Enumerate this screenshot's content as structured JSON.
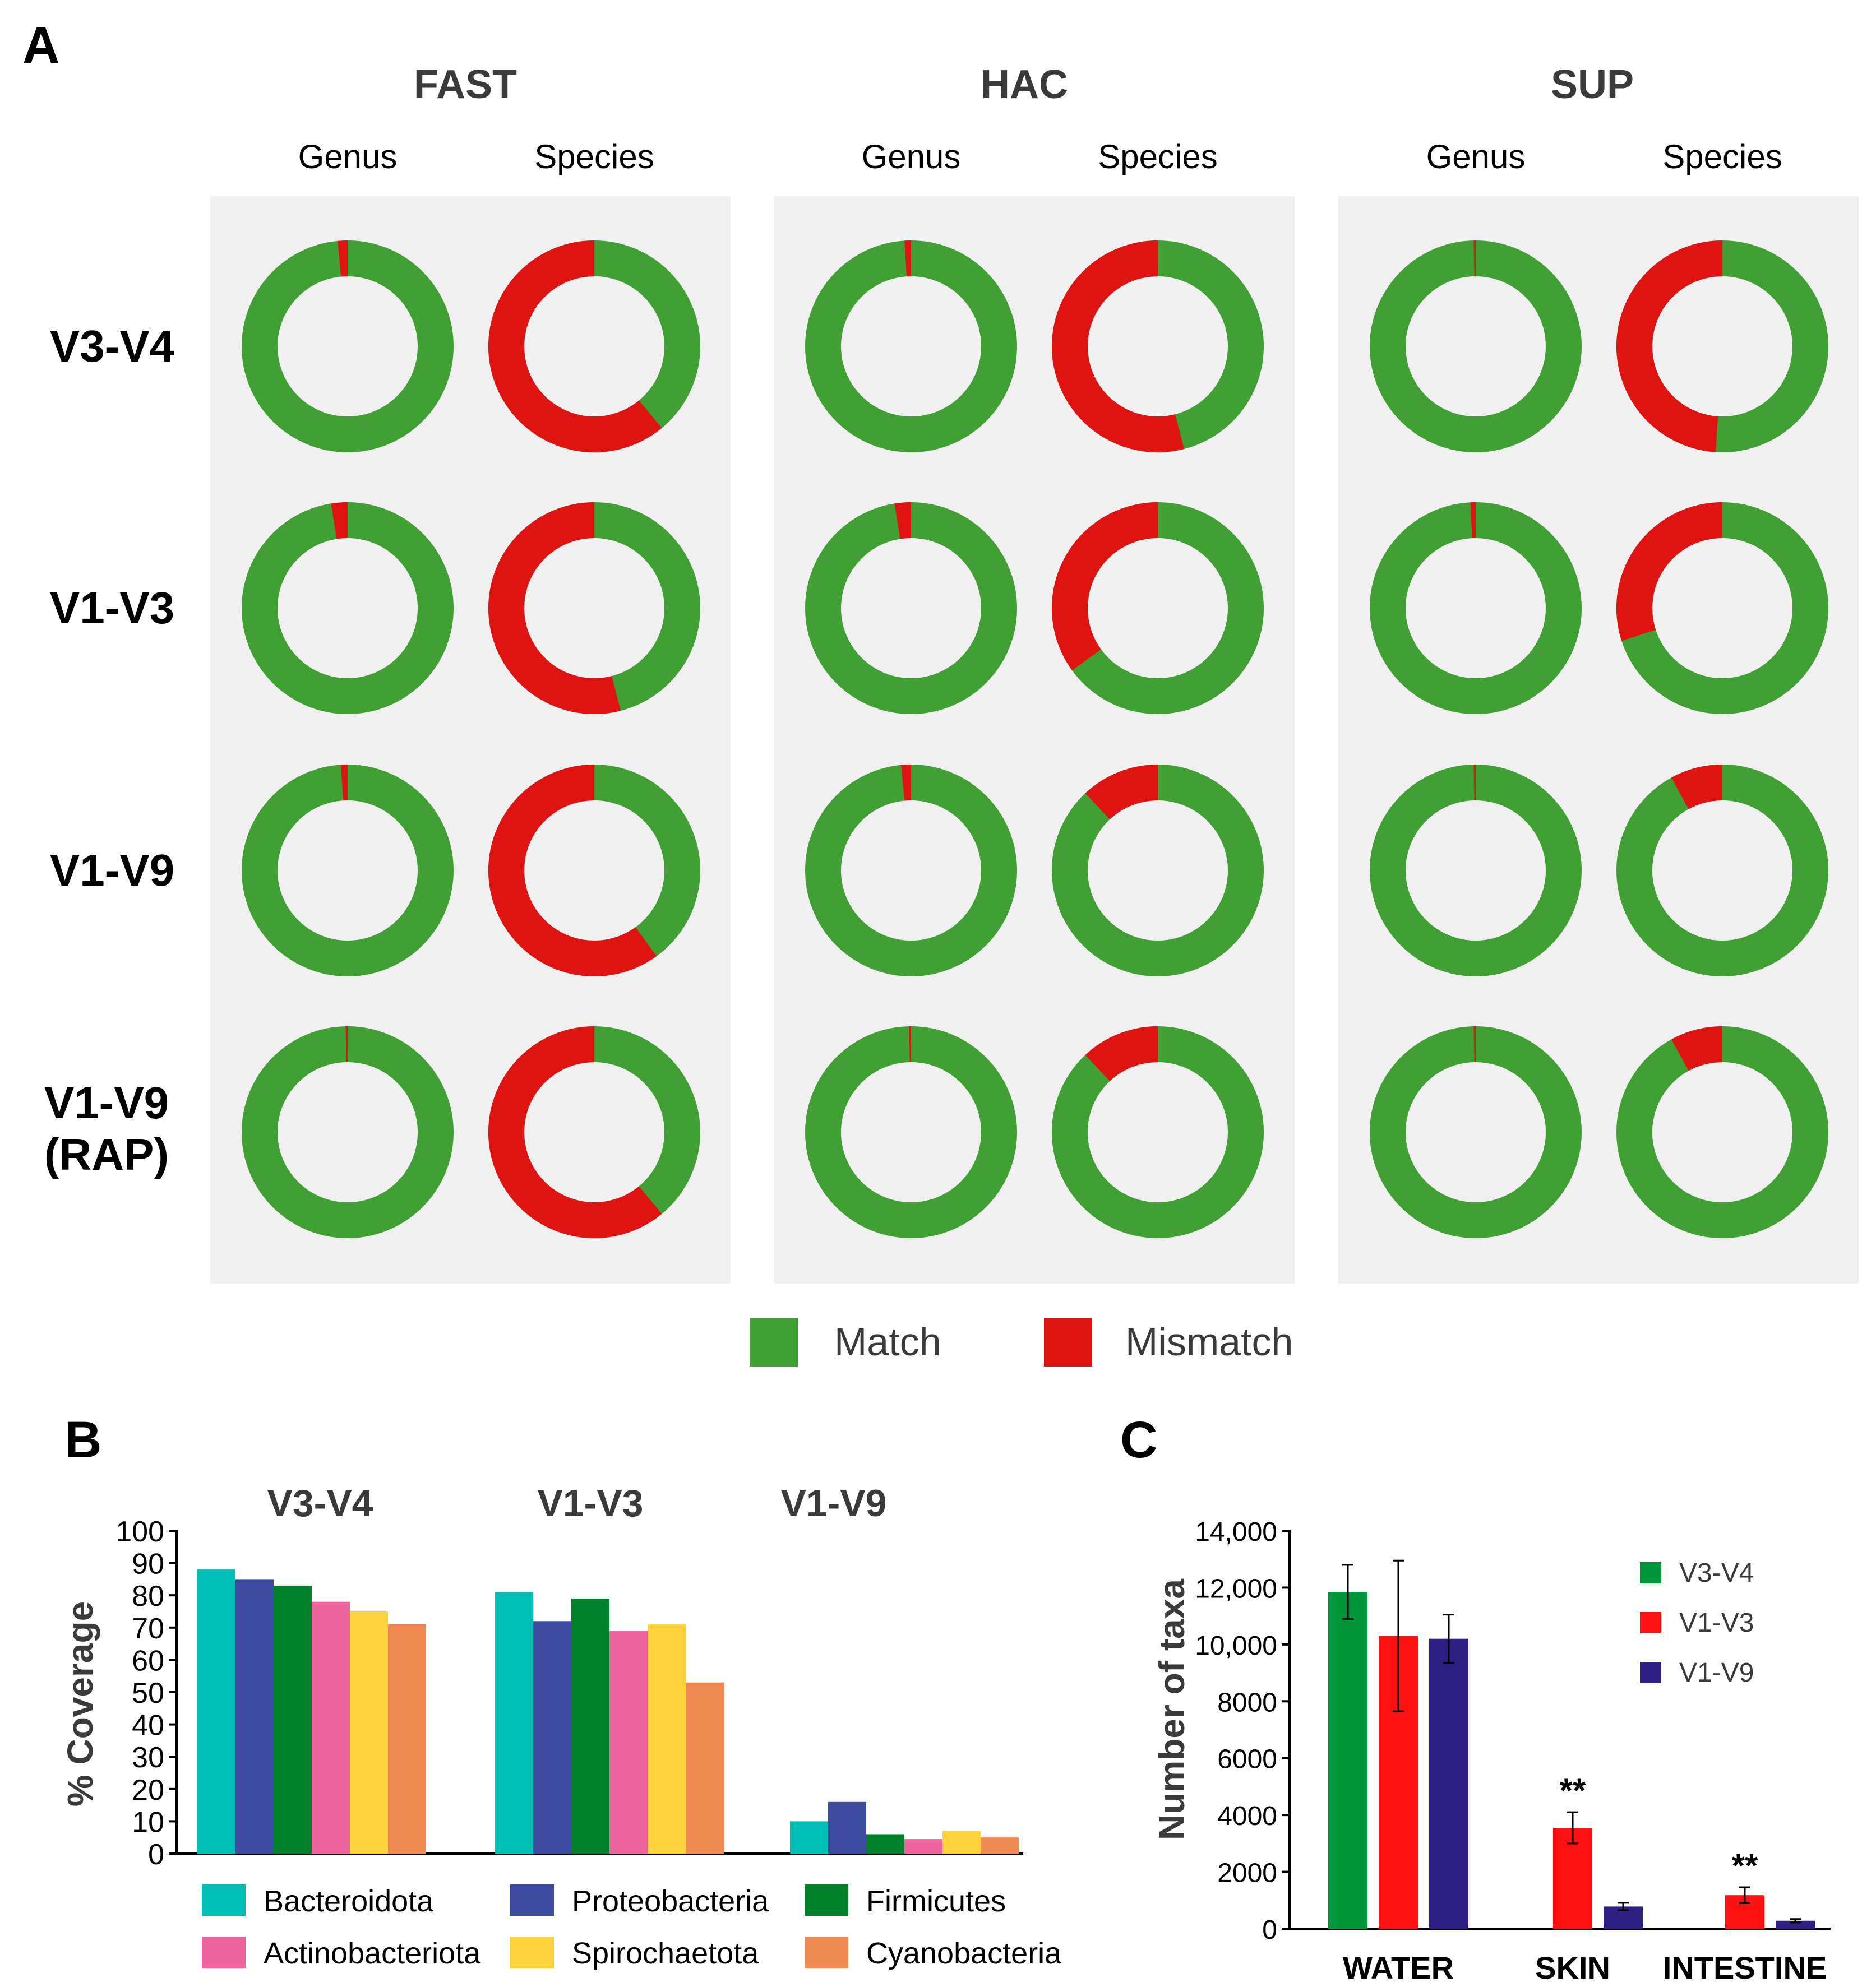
{
  "colors": {
    "match": "#41a033",
    "mismatch": "#e01313",
    "panel_bg": "#f0f0f0",
    "axis": "#000000",
    "text_dark": "#3a3a3a"
  },
  "panel_a": {
    "label": "A",
    "legend": {
      "match": "Match",
      "mismatch": "Mismatch"
    },
    "chart_data": {
      "type": "donut-grid",
      "basecallers": [
        "FAST",
        "HAC",
        "SUP"
      ],
      "levels": [
        "Genus",
        "Species"
      ],
      "regions": [
        "V3-V4",
        "V1-V3",
        "V1-V9",
        "V1-V9 (RAP)"
      ],
      "mismatch_percent": [
        [
          [
            1.5,
            61
          ],
          [
            1.0,
            54
          ],
          [
            0.3,
            49
          ]
        ],
        [
          [
            2.5,
            54
          ],
          [
            2.5,
            35
          ],
          [
            0.8,
            30
          ]
        ],
        [
          [
            1.0,
            60
          ],
          [
            1.5,
            12
          ],
          [
            0.3,
            8
          ]
        ],
        [
          [
            0.3,
            61
          ],
          [
            0.3,
            12
          ],
          [
            0.3,
            8
          ]
        ]
      ]
    }
  },
  "panel_b": {
    "label": "B",
    "chart_data": {
      "type": "bar",
      "title": "",
      "ylabel": "% Coverage",
      "ylim": [
        0,
        100
      ],
      "yticks": [
        0,
        10,
        20,
        30,
        40,
        50,
        60,
        70,
        80,
        90,
        100
      ],
      "categories": [
        "V3-V4",
        "V1-V3",
        "V1-V9"
      ],
      "series": [
        {
          "name": "Bacteroidota",
          "color": "#00bfb6",
          "values": [
            88,
            81,
            10
          ]
        },
        {
          "name": "Proteobacteria",
          "color": "#3c4aa0",
          "values": [
            85,
            72,
            16
          ]
        },
        {
          "name": "Firmicutes",
          "color": "#00822d",
          "values": [
            83,
            79,
            6
          ]
        },
        {
          "name": "Actinobacteriota",
          "color": "#ee649e",
          "values": [
            78,
            69,
            4.5
          ]
        },
        {
          "name": "Spirochaetota",
          "color": "#fdd23b",
          "values": [
            75,
            71,
            7
          ]
        },
        {
          "name": "Cyanobacteria",
          "color": "#ef8a52",
          "values": [
            71,
            53,
            5
          ]
        }
      ]
    }
  },
  "panel_c": {
    "label": "C",
    "chart_data": {
      "type": "bar",
      "title": "",
      "ylabel": "Number of taxa",
      "ylim": [
        0,
        14000
      ],
      "yticks": [
        0,
        2000,
        4000,
        6000,
        8000,
        10000,
        12000,
        14000
      ],
      "ytick_labels": [
        "0",
        "2000",
        "4000",
        "6000",
        "8000",
        "10,000",
        "12,000",
        "14,000"
      ],
      "categories": [
        "WATER",
        "SKIN",
        "INTESTINE"
      ],
      "series": [
        {
          "name": "V3-V4",
          "color": "#00963c",
          "values": [
            11850,
            null,
            null
          ],
          "errors": [
            950,
            null,
            null
          ]
        },
        {
          "name": "V1-V3",
          "color": "#ff1010",
          "values": [
            10300,
            3550,
            1180
          ],
          "errors": [
            2650,
            550,
            280
          ]
        },
        {
          "name": "V1-V9",
          "color": "#2e1f82",
          "values": [
            10200,
            780,
            280
          ],
          "errors": [
            850,
            130,
            60
          ]
        }
      ],
      "annotations": [
        "**",
        "**"
      ]
    }
  }
}
